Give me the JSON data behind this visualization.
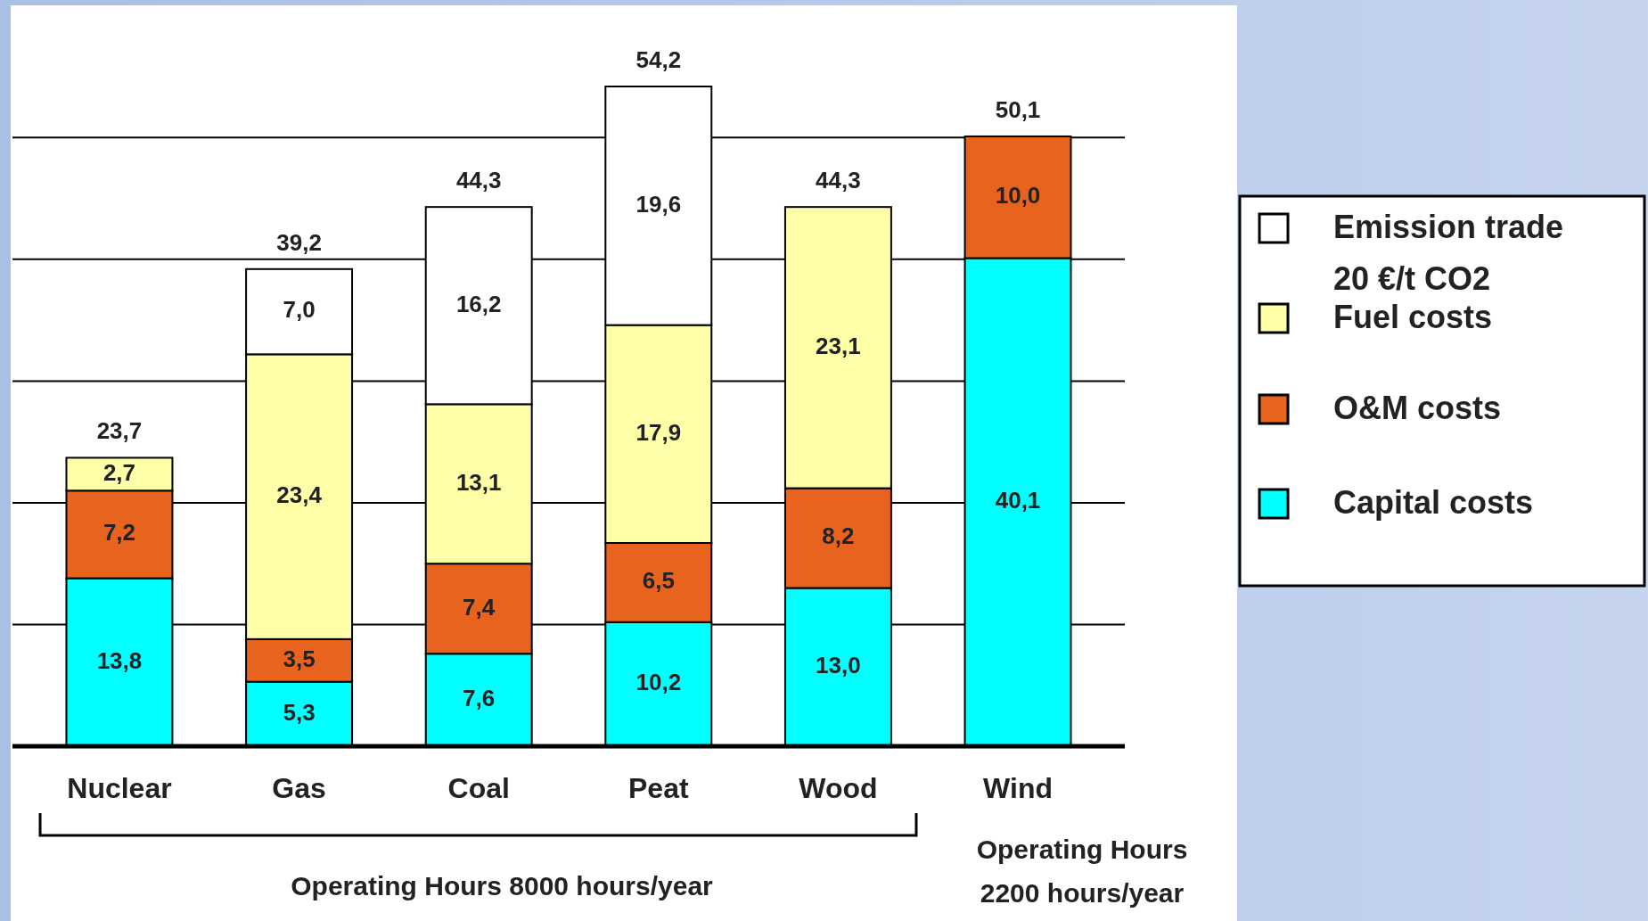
{
  "chart_data": {
    "type": "bar",
    "stacked": true,
    "categories": [
      "Nuclear",
      "Gas",
      "Coal",
      "Peat",
      "Wood",
      "Wind"
    ],
    "series": [
      {
        "name": "Capital costs",
        "color": "#00ffff",
        "values": [
          13.8,
          5.3,
          7.6,
          10.2,
          13.0,
          40.1
        ],
        "value_labels": [
          "13,8",
          "5,3",
          "7,6",
          "10,2",
          "13,0",
          "40,1"
        ]
      },
      {
        "name": "O&M costs",
        "color": "#e8641e",
        "values": [
          7.2,
          3.5,
          7.4,
          6.5,
          8.2,
          10.0
        ],
        "value_labels": [
          "7,2",
          "3,5",
          "7,4",
          "6,5",
          "8,2",
          "10,0"
        ]
      },
      {
        "name": "Fuel costs",
        "color": "#ffffa8",
        "values": [
          2.7,
          23.4,
          13.1,
          17.9,
          23.1,
          null
        ],
        "value_labels": [
          "2,7",
          "23,4",
          "13,1",
          "17,9",
          "23,1",
          null
        ]
      },
      {
        "name": "Emission trade 20 €/t CO2",
        "color": "#ffffff",
        "values": [
          null,
          7.0,
          16.2,
          19.6,
          null,
          null
        ],
        "value_labels": [
          null,
          "7,0",
          "16,2",
          "19,6",
          null,
          null
        ]
      }
    ],
    "totals": [
      "23,7",
      "39,2",
      "44,3",
      "54,2",
      "44,3",
      "50,1"
    ],
    "yticks": [
      {
        "value": 10,
        "label": null
      },
      {
        "value": 20,
        "label": null
      },
      {
        "value": 30,
        "label": null
      },
      {
        "value": 40,
        "label": null
      },
      {
        "value": 50,
        "label": null
      }
    ],
    "tick_labels": "x",
    "grid": "y",
    "legend": "right",
    "annotations": [
      "Operating Hours 8000 hours/year",
      "Operating Hours 2200 hours/year"
    ]
  }
}
